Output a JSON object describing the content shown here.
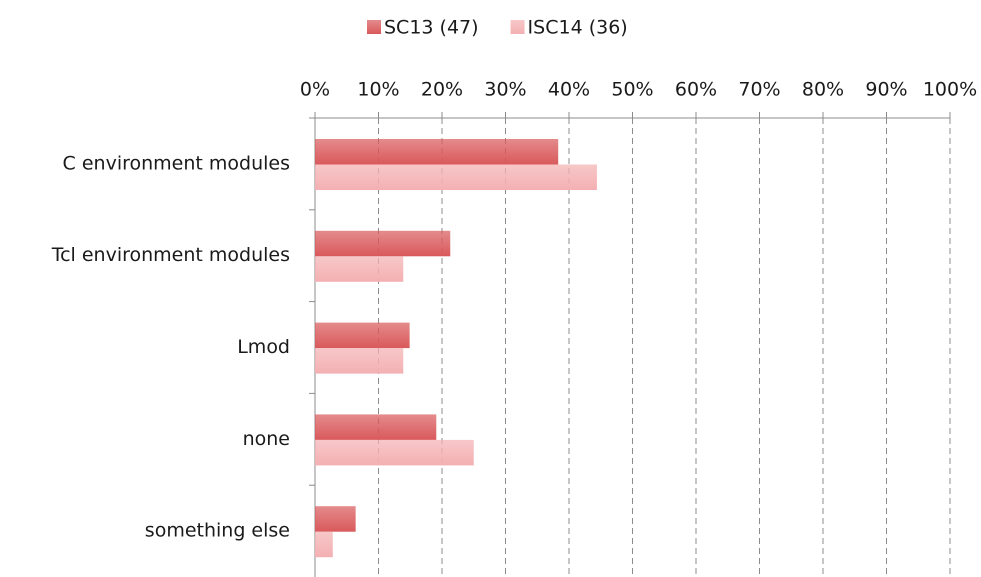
{
  "chart_data": {
    "type": "barh",
    "categories": [
      "C environment modules",
      "Tcl environment modules",
      "Lmod",
      "none",
      "something else"
    ],
    "series": [
      {
        "name": "SC13 (47)",
        "color": "#d9595b",
        "values": [
          38.3,
          21.3,
          14.9,
          19.1,
          6.4
        ]
      },
      {
        "name": "ISC14 (36)",
        "color": "#f4b0b2",
        "values": [
          44.4,
          13.9,
          13.9,
          25.0,
          2.8
        ]
      }
    ],
    "xlim": [
      0,
      100
    ],
    "xticks": [
      {
        "value": 0,
        "label": "0%"
      },
      {
        "value": 10,
        "label": "10%"
      },
      {
        "value": 20,
        "label": "20%"
      },
      {
        "value": 30,
        "label": "30%"
      },
      {
        "value": 40,
        "label": "40%"
      },
      {
        "value": 50,
        "label": "50%"
      },
      {
        "value": 60,
        "label": "60%"
      },
      {
        "value": 70,
        "label": "70%"
      },
      {
        "value": 80,
        "label": "80%"
      },
      {
        "value": 90,
        "label": "90%"
      },
      {
        "value": 100,
        "label": "100%"
      }
    ],
    "grid": true,
    "legend": "top"
  }
}
